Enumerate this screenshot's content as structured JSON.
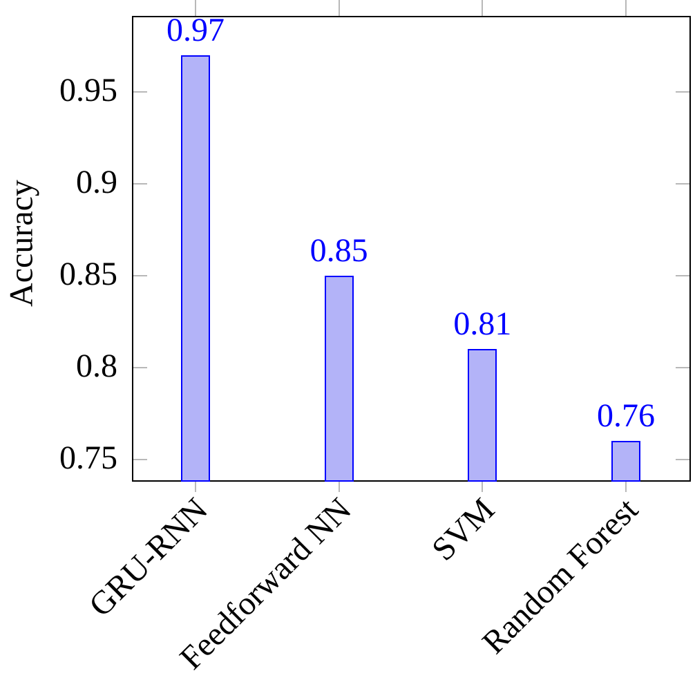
{
  "chart_data": {
    "type": "bar",
    "title": "",
    "xlabel": "",
    "ylabel": "Accuracy",
    "categories": [
      "GRU-RNN",
      "Feedforward NN",
      "SVM",
      "Random Forest"
    ],
    "values": [
      0.97,
      0.85,
      0.81,
      0.76
    ],
    "bar_value_labels": [
      "0.97",
      "0.85",
      "0.81",
      "0.76"
    ],
    "yticks": [
      0.75,
      0.8,
      0.85,
      0.9,
      0.95
    ],
    "ytick_labels": [
      "0.75",
      "0.8",
      "0.85",
      "0.9",
      "0.95"
    ],
    "ylim": [
      0.738,
      0.9914
    ],
    "grid": false,
    "legend_position": "none",
    "axis_frame": "box",
    "colors": {
      "bar_fill": "#b3b3f8",
      "bar_border": "#0000ff",
      "value_label": "#0000ff",
      "axis": "#000000",
      "tick": "#b8b8b8",
      "text": "#000000"
    }
  }
}
